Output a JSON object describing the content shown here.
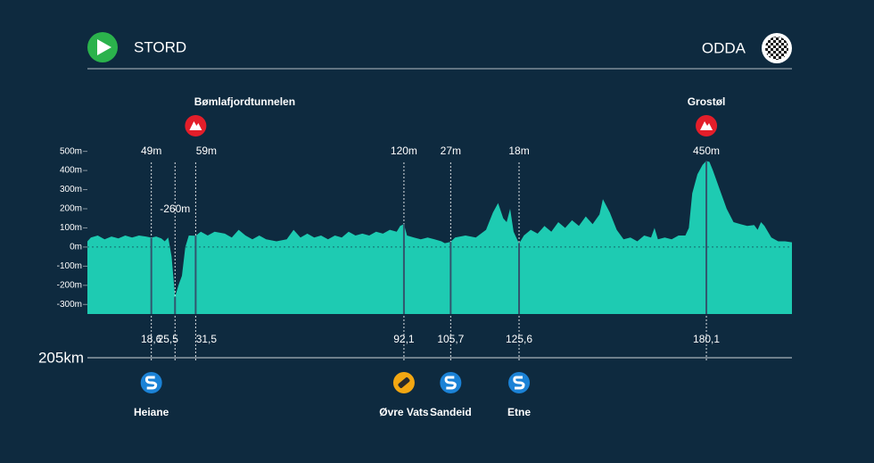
{
  "chart_data": {
    "type": "area",
    "start": "STORD",
    "finish": "ODDA",
    "distance": {
      "value": 205,
      "label": "205km"
    },
    "color": "#1ecbb2",
    "xlim": [
      0,
      205
    ],
    "ylim": [
      -350,
      545
    ],
    "yticks": [
      {
        "value": 500,
        "label": "500m"
      },
      {
        "value": 400,
        "label": "400m"
      },
      {
        "value": 300,
        "label": "300m"
      },
      {
        "value": 200,
        "label": "200m"
      },
      {
        "value": 100,
        "label": "100m"
      },
      {
        "value": 0,
        "label": "0m"
      },
      {
        "value": -100,
        "label": "-100m"
      },
      {
        "value": -200,
        "label": "-200m"
      },
      {
        "value": -300,
        "label": "-300m"
      }
    ],
    "x": [
      0,
      1,
      3,
      5,
      7,
      9,
      11,
      13,
      15,
      17,
      18.6,
      20,
      21.5,
      22.5,
      23.5,
      24.5,
      25.5,
      26.5,
      27.5,
      28.5,
      29.5,
      31.5,
      33,
      35,
      37,
      40,
      42,
      44,
      46,
      48,
      50,
      52,
      55,
      58,
      60,
      62,
      64,
      66,
      68,
      70,
      72,
      74,
      76,
      78,
      80,
      82,
      84,
      86,
      88,
      90,
      91,
      92.1,
      93,
      95,
      97,
      99,
      101,
      103,
      104,
      105.7,
      107,
      110,
      113,
      116,
      118,
      119.5,
      121,
      122,
      123,
      124,
      125.6,
      127,
      129,
      131,
      133,
      135,
      137,
      139,
      141,
      143,
      145,
      147,
      149,
      150,
      152,
      154,
      156,
      158,
      160,
      162,
      164,
      165,
      166,
      168,
      170,
      172,
      174,
      175,
      176,
      177.5,
      179,
      180.1,
      181,
      182,
      184,
      186,
      188,
      190,
      192,
      194,
      195,
      196,
      197,
      199,
      201,
      203,
      205
    ],
    "values": [
      30,
      50,
      60,
      40,
      55,
      45,
      60,
      50,
      60,
      55,
      49,
      55,
      45,
      30,
      50,
      -50,
      -260,
      -200,
      -150,
      0,
      60,
      59,
      80,
      60,
      80,
      70,
      50,
      90,
      60,
      40,
      60,
      40,
      30,
      40,
      90,
      50,
      70,
      50,
      60,
      40,
      60,
      50,
      80,
      60,
      70,
      60,
      80,
      70,
      90,
      80,
      110,
      120,
      60,
      50,
      40,
      50,
      40,
      30,
      20,
      27,
      50,
      60,
      50,
      90,
      180,
      230,
      150,
      130,
      200,
      80,
      18,
      60,
      90,
      70,
      110,
      80,
      130,
      100,
      140,
      110,
      160,
      120,
      170,
      250,
      180,
      90,
      40,
      50,
      30,
      60,
      50,
      100,
      40,
      50,
      40,
      60,
      60,
      100,
      280,
      380,
      430,
      450,
      445,
      400,
      300,
      200,
      130,
      120,
      110,
      115,
      90,
      130,
      110,
      50,
      30,
      30,
      25
    ],
    "markers": [
      {
        "km": {
          "value": 18.6,
          "label": "18,6"
        },
        "elevation": {
          "value": 49,
          "label": "49m"
        },
        "icon": "sprint",
        "bottom_label": "Heiane"
      },
      {
        "km": {
          "value": 25.5,
          "label": "25,5"
        },
        "elevation": {
          "value": -260,
          "label": "-260m"
        }
      },
      {
        "km": {
          "value": 31.5,
          "label": "31,5"
        },
        "elevation": {
          "value": 59,
          "label": "59m"
        },
        "icon": "climb",
        "top_label": "Bømlafjordtunnelen"
      },
      {
        "km": {
          "value": 92.1,
          "label": "92,1"
        },
        "elevation": {
          "value": 120,
          "label": "120m"
        },
        "icon": "feed",
        "bottom_label": "Øvre Vats"
      },
      {
        "km": {
          "value": 105.7,
          "label": "105,7"
        },
        "elevation": {
          "value": 27,
          "label": "27m"
        },
        "icon": "sprint",
        "bottom_label": "Sandeid"
      },
      {
        "km": {
          "value": 125.6,
          "label": "125,6"
        },
        "elevation": {
          "value": 18,
          "label": "18m"
        },
        "icon": "sprint",
        "bottom_label": "Etne"
      },
      {
        "km": {
          "value": 180.1,
          "label": "180,1"
        },
        "elevation": {
          "value": 450,
          "label": "450m"
        },
        "icon": "climb",
        "top_label": "Grostøl"
      }
    ]
  }
}
